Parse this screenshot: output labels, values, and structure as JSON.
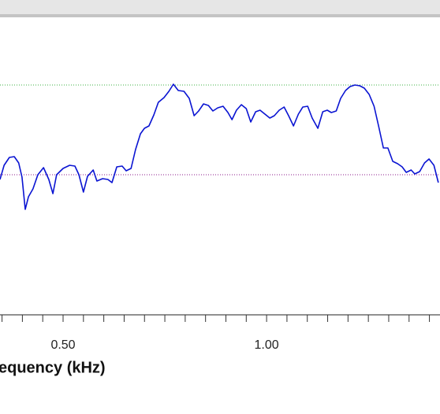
{
  "chart_data": {
    "type": "line",
    "x_label": "Frequency (kHz)",
    "xlim": [
      0.345,
      1.426
    ],
    "ylim": [
      22,
      400
    ],
    "xticks": [
      {
        "value": 0.5,
        "label": "0.50"
      },
      {
        "value": 1.0,
        "label": "1.00"
      }
    ],
    "xminor_ticks": [
      0.35,
      0.4,
      0.45,
      0.55,
      0.6,
      0.65,
      0.7,
      0.75,
      0.8,
      0.85,
      0.9,
      0.95,
      1.05,
      1.1,
      1.15,
      1.2,
      1.25,
      1.3,
      1.35,
      1.4
    ],
    "reference_lines": [
      {
        "value": 292,
        "color": "#3cb043"
      },
      {
        "value": 178,
        "color": "#8b1a8b"
      }
    ],
    "x": [
      0.345,
      0.355,
      0.368,
      0.38,
      0.391,
      0.399,
      0.407,
      0.415,
      0.426,
      0.438,
      0.452,
      0.465,
      0.475,
      0.484,
      0.5,
      0.516,
      0.529,
      0.539,
      0.55,
      0.56,
      0.574,
      0.583,
      0.597,
      0.61,
      0.62,
      0.632,
      0.645,
      0.655,
      0.667,
      0.678,
      0.69,
      0.7,
      0.711,
      0.723,
      0.734,
      0.748,
      0.76,
      0.771,
      0.783,
      0.797,
      0.81,
      0.822,
      0.833,
      0.845,
      0.857,
      0.868,
      0.88,
      0.893,
      0.905,
      0.915,
      0.926,
      0.938,
      0.95,
      0.961,
      0.973,
      0.984,
      0.996,
      1.008,
      1.019,
      1.031,
      1.043,
      1.054,
      1.066,
      1.078,
      1.089,
      1.101,
      1.112,
      1.126,
      1.138,
      1.149,
      1.159,
      1.171,
      1.182,
      1.194,
      1.205,
      1.217,
      1.229,
      1.24,
      1.252,
      1.264,
      1.275,
      1.287,
      1.298,
      1.31,
      1.322,
      1.333,
      1.343,
      1.355,
      1.364,
      1.376,
      1.388,
      1.399,
      1.411,
      1.422
    ],
    "series": [
      {
        "color": "#0a14d2",
        "values": [
          172,
          190,
          200,
          201,
          193,
          175,
          134,
          150,
          160,
          178,
          187,
          172,
          154,
          178,
          186,
          190,
          189,
          178,
          156,
          176,
          184,
          170,
          173,
          172,
          168,
          188,
          189,
          183,
          186,
          210,
          230,
          237,
          240,
          254,
          270,
          276,
          284,
          293,
          285,
          284,
          275,
          253,
          259,
          268,
          266,
          259,
          263,
          265,
          257,
          248,
          260,
          267,
          262,
          245,
          258,
          260,
          255,
          250,
          253,
          260,
          264,
          253,
          240,
          255,
          264,
          265,
          250,
          237,
          258,
          260,
          257,
          259,
          275,
          285,
          290,
          292,
          291,
          288,
          280,
          265,
          240,
          212,
          212,
          195,
          192,
          188,
          181,
          184,
          179,
          182,
          193,
          198,
          190,
          168
        ]
      }
    ]
  }
}
